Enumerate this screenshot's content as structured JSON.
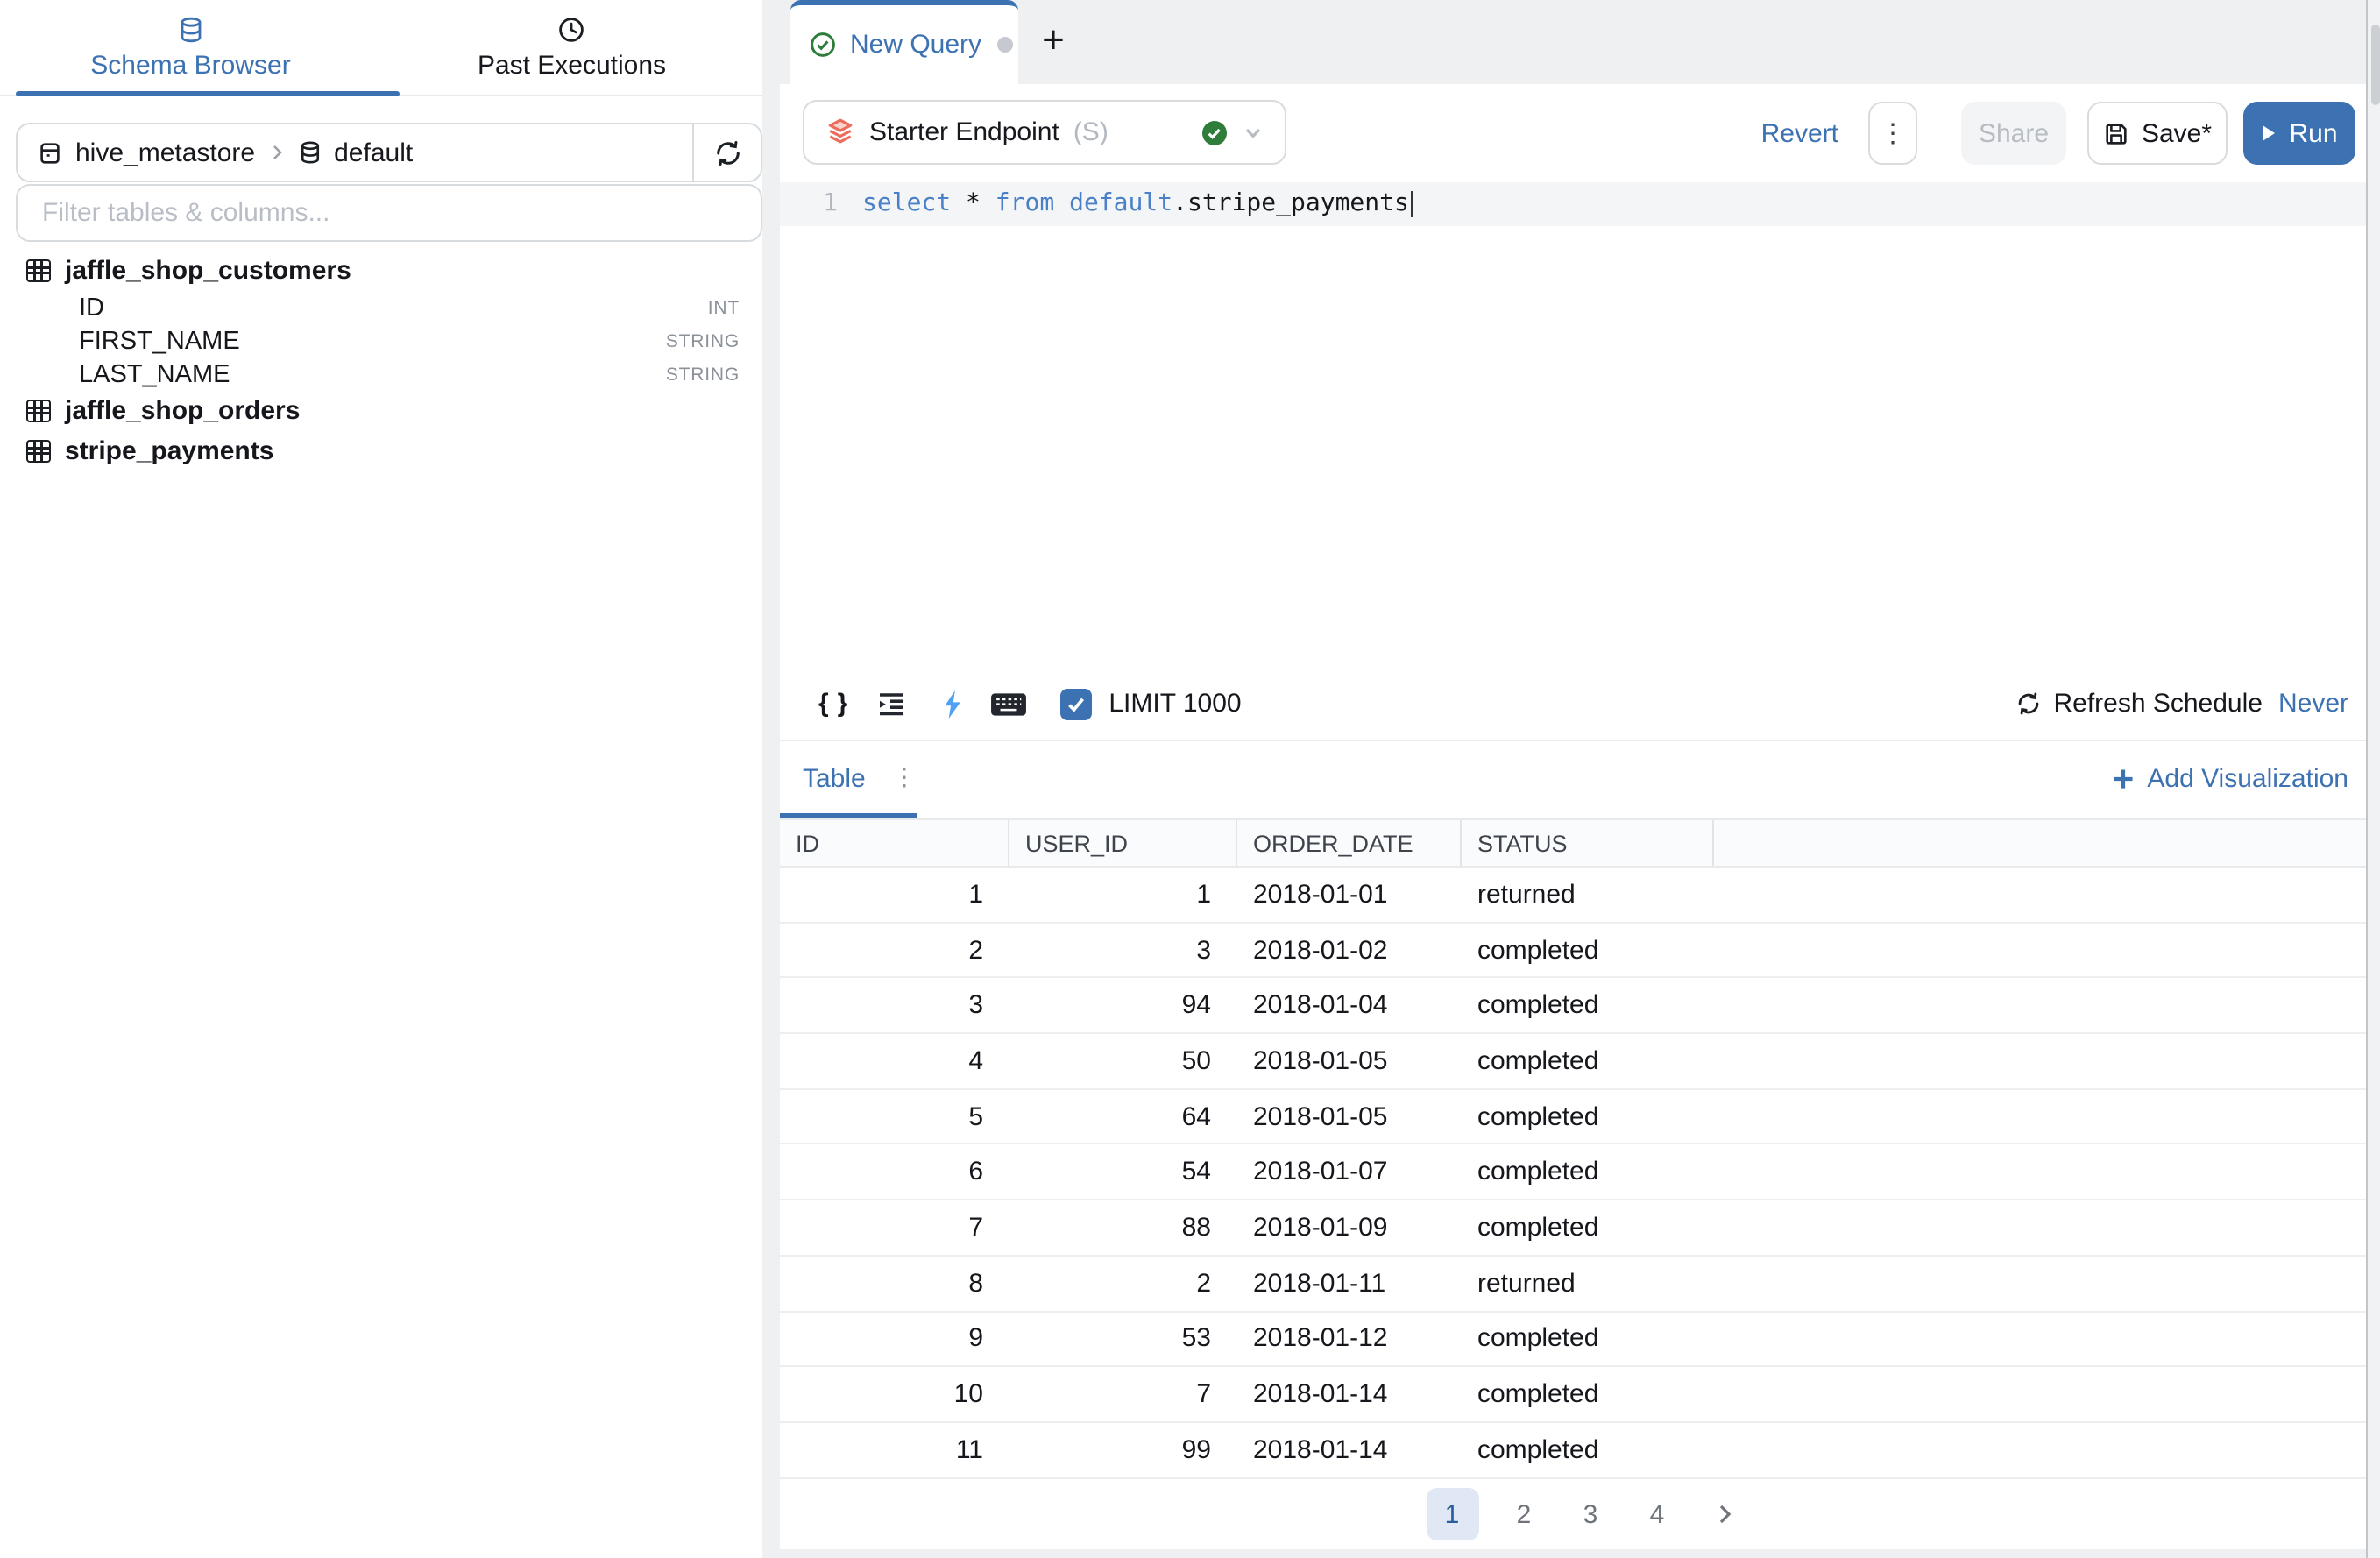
{
  "sidebar": {
    "tabs": [
      {
        "label": "Schema Browser",
        "icon": "database-icon",
        "active": true
      },
      {
        "label": "Past Executions",
        "icon": "clock-icon",
        "active": false
      }
    ],
    "breadcrumb": {
      "catalog": "hive_metastore",
      "schema": "default"
    },
    "filter_placeholder": "Filter tables & columns...",
    "schema": [
      {
        "table": "jaffle_shop_customers",
        "columns": [
          {
            "name": "ID",
            "type": "INT"
          },
          {
            "name": "FIRST_NAME",
            "type": "STRING"
          },
          {
            "name": "LAST_NAME",
            "type": "STRING"
          }
        ]
      },
      {
        "table": "jaffle_shop_orders",
        "columns": []
      },
      {
        "table": "stripe_payments",
        "columns": []
      }
    ]
  },
  "editor_tabs": {
    "active_tab_label": "New Query",
    "add_tab_label": "+"
  },
  "query_header": {
    "endpoint_label": "Starter Endpoint",
    "endpoint_size": "(S)",
    "revert_label": "Revert",
    "share_label": "Share",
    "save_label": "Save*",
    "run_label": "Run"
  },
  "editor": {
    "line_number": "1",
    "tokens": [
      {
        "text": "select",
        "type": "keyword"
      },
      {
        "text": " ",
        "type": "plain"
      },
      {
        "text": "*",
        "type": "plain"
      },
      {
        "text": " ",
        "type": "plain"
      },
      {
        "text": "from",
        "type": "keyword"
      },
      {
        "text": " ",
        "type": "plain"
      },
      {
        "text": "default",
        "type": "keyword"
      },
      {
        "text": ".",
        "type": "plain"
      },
      {
        "text": "stripe_payments",
        "type": "plain"
      }
    ]
  },
  "toolbar": {
    "limit_label": "LIMIT 1000",
    "limit_checked": true,
    "refresh_schedule_label": "Refresh Schedule",
    "refresh_schedule_value": "Never"
  },
  "results": {
    "tab_label": "Table",
    "add_visualization_label": "Add Visualization",
    "columns": [
      "ID",
      "USER_ID",
      "ORDER_DATE",
      "STATUS"
    ],
    "rows": [
      [
        "1",
        "1",
        "2018-01-01",
        "returned"
      ],
      [
        "2",
        "3",
        "2018-01-02",
        "completed"
      ],
      [
        "3",
        "94",
        "2018-01-04",
        "completed"
      ],
      [
        "4",
        "50",
        "2018-01-05",
        "completed"
      ],
      [
        "5",
        "64",
        "2018-01-05",
        "completed"
      ],
      [
        "6",
        "54",
        "2018-01-07",
        "completed"
      ],
      [
        "7",
        "88",
        "2018-01-09",
        "completed"
      ],
      [
        "8",
        "2",
        "2018-01-11",
        "returned"
      ],
      [
        "9",
        "53",
        "2018-01-12",
        "completed"
      ],
      [
        "10",
        "7",
        "2018-01-14",
        "completed"
      ],
      [
        "11",
        "99",
        "2018-01-14",
        "completed"
      ]
    ],
    "pagination": {
      "pages": [
        "1",
        "2",
        "3",
        "4"
      ],
      "active_index": 0,
      "next_label": ">"
    }
  },
  "colors": {
    "accent_blue": "#3c72b2",
    "keyword_blue": "#4a80c8",
    "success_green": "#2e7d3b",
    "endpoint_coral": "#ee6c5c",
    "disabled_gray": "#b7bcc3",
    "pagination_active_bg": "#dfe8f4"
  },
  "icons": {
    "schema_browser_tab": "database-icon",
    "past_executions_tab": "clock-icon",
    "breadcrumb_catalog": "catalog-icon",
    "breadcrumb_schema": "database-icon",
    "breadcrumb_refresh": "refresh-icon",
    "schema_table": "table-grid-icon",
    "query_tab_status": "check-circle-icon",
    "endpoint": "layers-icon",
    "endpoint_status": "check-circle-icon",
    "endpoint_open": "chevron-down-icon",
    "more_actions": "kebab-icon",
    "save": "floppy-icon",
    "run": "play-icon",
    "format_query": "braces-icon",
    "indent": "indent-icon",
    "execute": "lightning-icon",
    "shortcuts": "keyboard-icon",
    "limit": "checkbox-checked-icon",
    "schedule": "refresh-icon",
    "add_visualization": "plus-icon",
    "pagination_next": "chevron-right-icon"
  }
}
